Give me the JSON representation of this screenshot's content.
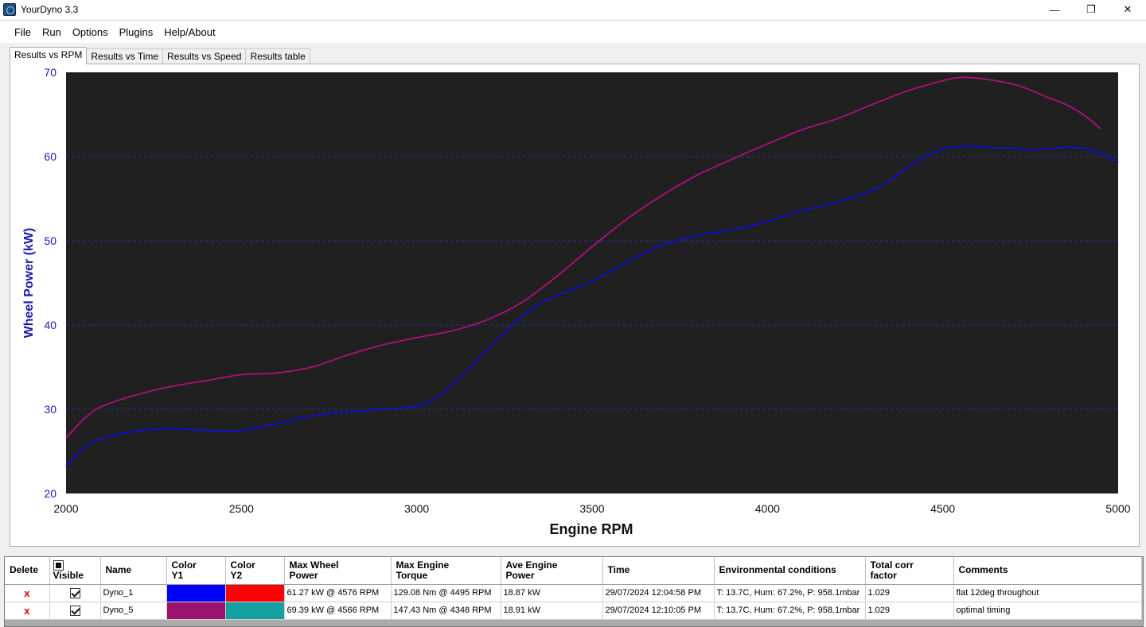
{
  "app": {
    "title": "YourDyno 3.3"
  },
  "window_controls": {
    "minimize": "—",
    "restore": "❐",
    "close": "✕"
  },
  "menu": [
    "File",
    "Run",
    "Options",
    "Plugins",
    "Help/About"
  ],
  "tabs": [
    {
      "label": "Results vs RPM",
      "active": true
    },
    {
      "label": "Results vs Time",
      "active": false
    },
    {
      "label": "Results vs Speed",
      "active": false
    },
    {
      "label": "Results table",
      "active": false
    }
  ],
  "chart_data": {
    "type": "line",
    "title": "",
    "xlabel": "Engine RPM",
    "ylabel": "Wheel Power (kW)",
    "xlim": [
      2000,
      5000
    ],
    "ylim": [
      20,
      70
    ],
    "xticks": [
      2000,
      2500,
      3000,
      3500,
      4000,
      4500,
      5000
    ],
    "yticks": [
      20,
      30,
      40,
      50,
      60,
      70
    ],
    "grid": true,
    "background": "#202020",
    "series": [
      {
        "color": "#1010c8",
        "x": [
          2000,
          2050,
          2100,
          2200,
          2300,
          2400,
          2500,
          2600,
          2700,
          2800,
          2900,
          3000,
          3050,
          3100,
          3150,
          3200,
          3250,
          3300,
          3350,
          3400,
          3500,
          3600,
          3700,
          3800,
          3900,
          4000,
          4100,
          4200,
          4300,
          4350,
          4400,
          4450,
          4500,
          4550,
          4600,
          4650,
          4700,
          4750,
          4800,
          4850,
          4900,
          4950,
          5000
        ],
        "y": [
          23.2,
          25.4,
          26.5,
          27.4,
          27.7,
          27.5,
          27.5,
          28.3,
          29.2,
          29.7,
          30.0,
          30.4,
          31.2,
          32.8,
          34.8,
          37.0,
          39.1,
          41.0,
          42.5,
          43.5,
          45.2,
          47.5,
          49.5,
          50.6,
          51.3,
          52.3,
          53.6,
          54.6,
          56.0,
          57.2,
          58.7,
          60.0,
          60.9,
          61.2,
          61.2,
          61.0,
          61.0,
          60.8,
          60.9,
          61.1,
          61.0,
          60.4,
          59.3
        ]
      },
      {
        "color": "#b0107a",
        "x": [
          2000,
          2050,
          2100,
          2200,
          2300,
          2400,
          2500,
          2600,
          2700,
          2800,
          2900,
          3000,
          3100,
          3200,
          3300,
          3400,
          3500,
          3600,
          3700,
          3800,
          3900,
          4000,
          4100,
          4200,
          4300,
          4400,
          4500,
          4550,
          4600,
          4650,
          4700,
          4750,
          4800,
          4850,
          4900,
          4950
        ],
        "y": [
          26.6,
          28.8,
          30.3,
          31.7,
          32.7,
          33.4,
          34.1,
          34.3,
          35.0,
          36.4,
          37.6,
          38.5,
          39.3,
          40.6,
          42.7,
          45.8,
          49.3,
          52.6,
          55.4,
          57.8,
          59.7,
          61.5,
          63.2,
          64.5,
          66.2,
          67.8,
          69.0,
          69.4,
          69.3,
          69.0,
          68.6,
          67.9,
          67.0,
          66.2,
          65.0,
          63.3
        ]
      }
    ]
  },
  "table": {
    "headers": {
      "delete": "Delete",
      "visible": "Visible",
      "name": "Name",
      "color_y1": [
        "Color",
        "Y1"
      ],
      "color_y2": [
        "Color",
        "Y2"
      ],
      "max_wheel_power": [
        "Max Wheel",
        "Power"
      ],
      "max_engine_torque": [
        "Max Engine",
        "Torque"
      ],
      "ave_engine_power": [
        "Ave Engine",
        "Power"
      ],
      "time": "Time",
      "env": "Environmental conditions",
      "corr": [
        "Total corr",
        "factor"
      ],
      "comments": "Comments"
    },
    "rows": [
      {
        "delete": "x",
        "visible": true,
        "name": "Dyno_1",
        "color_y1": "#0000ff",
        "color_y2": "#ff0000",
        "max_wheel_power": "61.27 kW @ 4576 RPM",
        "max_engine_torque": "129.08 Nm @ 4495 RPM",
        "ave_engine_power": "18.87 kW",
        "time": "29/07/2024 12:04:58 PM",
        "env": "T: 13.7C, Hum: 67.2%, P: 958.1mbar",
        "corr": "1.029",
        "comments": "flat 12deg throughout"
      },
      {
        "delete": "x",
        "visible": true,
        "name": "Dyno_5",
        "color_y1": "#99136e",
        "color_y2": "#14a0a0",
        "max_wheel_power": "69.39 kW @ 4566 RPM",
        "max_engine_torque": "147.43 Nm @ 4348 RPM",
        "ave_engine_power": "18.91 kW",
        "time": "29/07/2024 12:10:05 PM",
        "env": "T: 13.7C, Hum: 67.2%, P: 958.1mbar",
        "corr": "1.029",
        "comments": "optimal timing"
      }
    ]
  }
}
